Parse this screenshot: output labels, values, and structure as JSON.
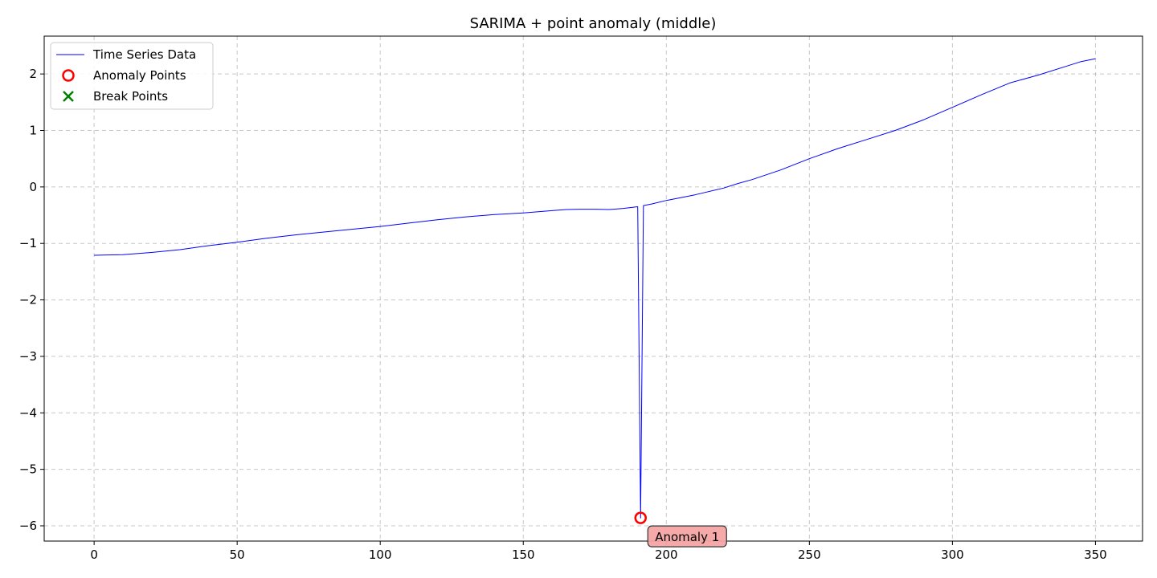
{
  "chart_data": {
    "type": "line",
    "title": "SARIMA + point anomaly (middle)",
    "xlabel": "",
    "ylabel": "",
    "xlim": [
      -17.45,
      366.45
    ],
    "ylim": [
      -6.27,
      2.67
    ],
    "xticks": [
      0,
      50,
      100,
      150,
      200,
      250,
      300,
      350
    ],
    "yticks": [
      -6,
      -5,
      -4,
      -3,
      -2,
      -1,
      0,
      1,
      2
    ],
    "grid": true,
    "legend_position": "top-left",
    "series": [
      {
        "name": "Time Series Data",
        "kind": "line",
        "color": "#0000ff",
        "x": [
          0,
          10,
          20,
          30,
          40,
          50,
          60,
          70,
          80,
          90,
          100,
          110,
          120,
          130,
          140,
          150,
          160,
          165,
          170,
          175,
          180,
          185,
          190,
          191,
          192,
          195,
          200,
          210,
          220,
          225,
          230,
          240,
          250,
          260,
          270,
          280,
          290,
          300,
          310,
          320,
          330,
          340,
          345,
          350
        ],
        "y": [
          -1.21,
          -1.2,
          -1.16,
          -1.11,
          -1.04,
          -0.98,
          -0.91,
          -0.85,
          -0.8,
          -0.75,
          -0.7,
          -0.64,
          -0.58,
          -0.53,
          -0.49,
          -0.46,
          -0.42,
          -0.4,
          -0.395,
          -0.395,
          -0.4,
          -0.38,
          -0.35,
          -5.86,
          -0.33,
          -0.3,
          -0.24,
          -0.14,
          -0.02,
          0.06,
          0.13,
          0.3,
          0.5,
          0.68,
          0.84,
          1.0,
          1.19,
          1.41,
          1.63,
          1.84,
          1.98,
          2.14,
          2.22,
          2.27
        ]
      },
      {
        "name": "Anomaly Points",
        "kind": "scatter",
        "marker": "circle-open",
        "color": "#ff0000",
        "x": [
          191
        ],
        "y": [
          -5.86
        ]
      },
      {
        "name": "Break Points",
        "kind": "scatter",
        "marker": "x",
        "color": "#008000",
        "x": [],
        "y": []
      }
    ],
    "annotations": [
      {
        "text": "Anomaly 1",
        "x": 191,
        "y": -5.86,
        "bg": "#f4a4a4"
      }
    ]
  }
}
